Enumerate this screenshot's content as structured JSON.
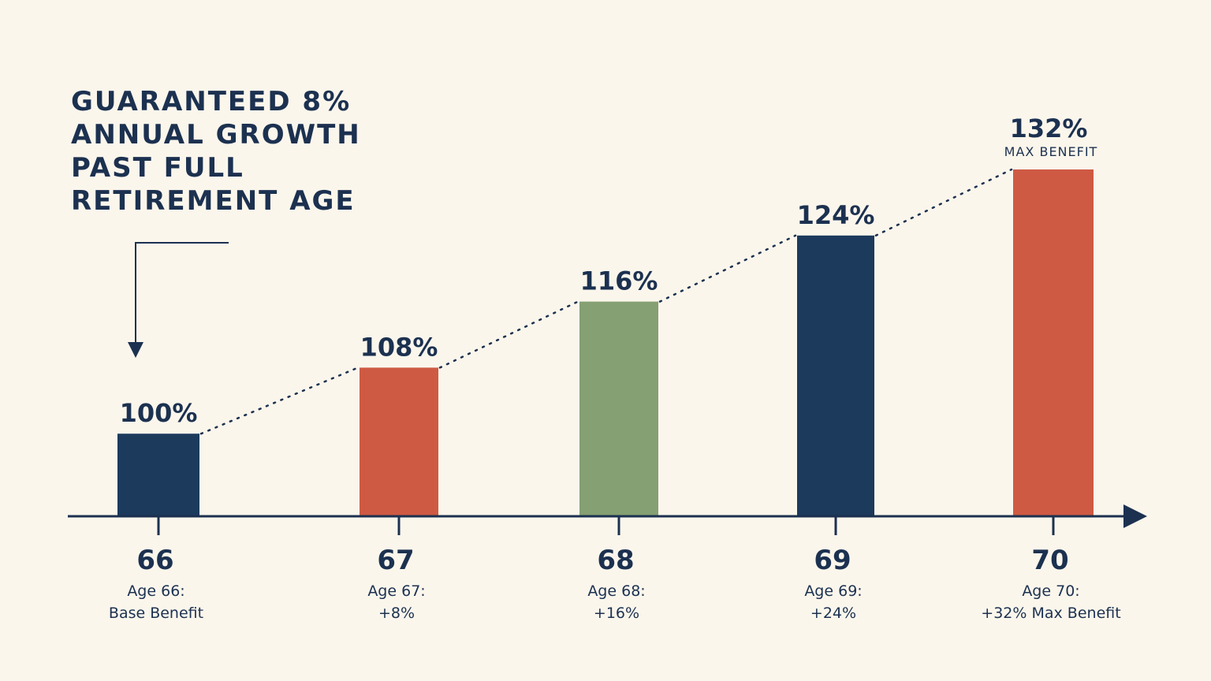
{
  "headline_lines": [
    "GUARANTEED 8%",
    "ANNUAL GROWTH",
    "PAST FULL",
    "RETIREMENT AGE"
  ],
  "chart_data": {
    "type": "bar",
    "title": "",
    "xlabel": "",
    "ylabel": "",
    "categories": [
      "66",
      "67",
      "68",
      "69",
      "70"
    ],
    "values": [
      100,
      108,
      116,
      124,
      132
    ],
    "value_labels": [
      "100%",
      "108%",
      "116%",
      "124%",
      "132%"
    ],
    "max_note": "MAX BENEFIT",
    "descriptions": [
      [
        "Age 66:",
        "Base Benefit"
      ],
      [
        "Age 67:",
        "+8%"
      ],
      [
        "Age 68:",
        "+16%"
      ],
      [
        "Age 69:",
        "+24%"
      ],
      [
        "Age 70:",
        "+32% Max Benefit"
      ]
    ],
    "bar_colors": [
      "#1c3a5c",
      "#cf5a43",
      "#85a072",
      "#1c3a5c",
      "#cf5a43"
    ],
    "axis_color": "#1c3150",
    "trend_line": "dotted",
    "grid": false,
    "legend": "none"
  }
}
